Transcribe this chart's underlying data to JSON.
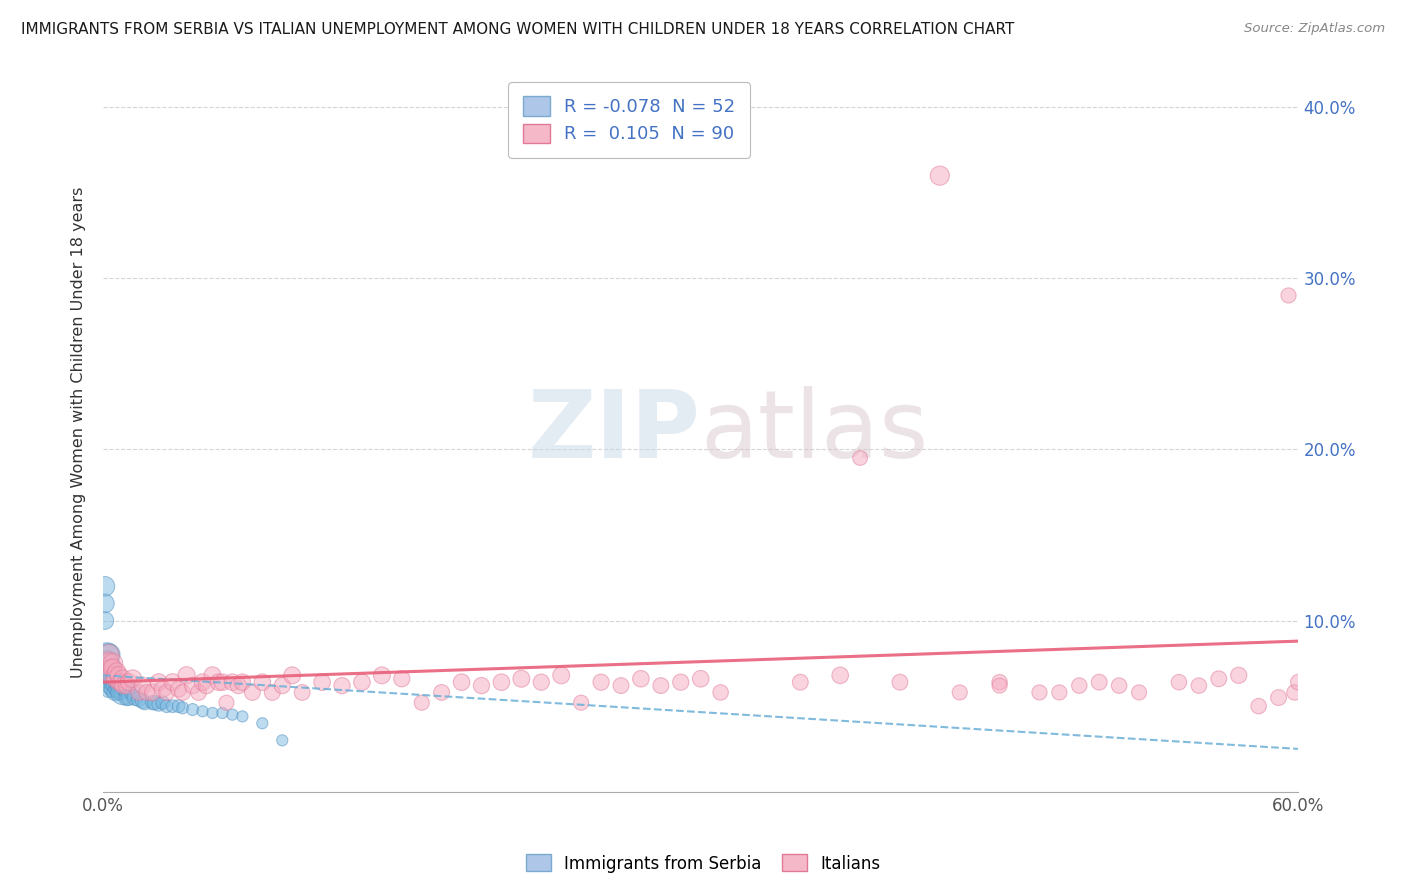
{
  "title": "IMMIGRANTS FROM SERBIA VS ITALIAN UNEMPLOYMENT AMONG WOMEN WITH CHILDREN UNDER 18 YEARS CORRELATION CHART",
  "source": "Source: ZipAtlas.com",
  "ylabel": "Unemployment Among Women with Children Under 18 years",
  "xlim": [
    0.0,
    0.6
  ],
  "ylim": [
    0.0,
    0.42
  ],
  "xtick_vals": [
    0.0,
    0.1,
    0.2,
    0.3,
    0.4,
    0.5,
    0.6
  ],
  "xtick_labels": [
    "0.0%",
    "",
    "",
    "",
    "",
    "",
    "60.0%"
  ],
  "ytick_vals": [
    0.0,
    0.1,
    0.2,
    0.3,
    0.4
  ],
  "ytick_labels": [
    "",
    "10.0%",
    "20.0%",
    "30.0%",
    "40.0%"
  ],
  "legend_entries": [
    {
      "color": "#aec6e8",
      "R": "-0.078",
      "N": "52",
      "label": "Immigrants from Serbia"
    },
    {
      "color": "#f5b8c8",
      "R": "0.105",
      "N": "90",
      "label": "Italians"
    }
  ],
  "watermark_zip": "ZIP",
  "watermark_atlas": "atlas",
  "background_color": "#ffffff",
  "grid_color": "#cccccc",
  "serbia_color": "#7ab8e0",
  "serbia_edge_color": "#5090c0",
  "italy_color": "#f5aabf",
  "italy_edge_color": "#e07898",
  "trend_serbia_color": "#6aaed6",
  "trend_italy_color": "#e8607a",
  "serbia_points_x": [
    0.001,
    0.001,
    0.001,
    0.002,
    0.002,
    0.002,
    0.003,
    0.003,
    0.003,
    0.003,
    0.003,
    0.004,
    0.004,
    0.004,
    0.005,
    0.005,
    0.005,
    0.006,
    0.006,
    0.006,
    0.007,
    0.007,
    0.008,
    0.008,
    0.009,
    0.009,
    0.01,
    0.01,
    0.012,
    0.012,
    0.013,
    0.015,
    0.016,
    0.018,
    0.02,
    0.021,
    0.025,
    0.026,
    0.028,
    0.03,
    0.032,
    0.035,
    0.038,
    0.04,
    0.045,
    0.05,
    0.055,
    0.06,
    0.065,
    0.07,
    0.08,
    0.09
  ],
  "serbia_points_y": [
    0.12,
    0.11,
    0.1,
    0.08,
    0.076,
    0.072,
    0.08,
    0.075,
    0.07,
    0.065,
    0.06,
    0.072,
    0.068,
    0.062,
    0.068,
    0.064,
    0.06,
    0.066,
    0.062,
    0.058,
    0.064,
    0.06,
    0.062,
    0.058,
    0.062,
    0.058,
    0.062,
    0.058,
    0.06,
    0.055,
    0.055,
    0.058,
    0.055,
    0.054,
    0.053,
    0.052,
    0.052,
    0.052,
    0.051,
    0.052,
    0.05,
    0.05,
    0.05,
    0.049,
    0.048,
    0.047,
    0.046,
    0.046,
    0.045,
    0.044,
    0.04,
    0.03
  ],
  "serbia_sizes": [
    200,
    180,
    160,
    300,
    260,
    220,
    260,
    220,
    190,
    170,
    150,
    210,
    190,
    170,
    190,
    170,
    150,
    170,
    155,
    135,
    155,
    135,
    145,
    125,
    135,
    120,
    210,
    310,
    155,
    135,
    125,
    135,
    125,
    115,
    115,
    105,
    105,
    105,
    95,
    95,
    85,
    85,
    85,
    75,
    75,
    65,
    65,
    65,
    65,
    65,
    65,
    65
  ],
  "italy_points_x": [
    0.002,
    0.003,
    0.003,
    0.004,
    0.004,
    0.005,
    0.005,
    0.006,
    0.006,
    0.007,
    0.008,
    0.008,
    0.009,
    0.01,
    0.01,
    0.012,
    0.013,
    0.015,
    0.018,
    0.02,
    0.022,
    0.025,
    0.028,
    0.03,
    0.032,
    0.035,
    0.038,
    0.04,
    0.042,
    0.045,
    0.048,
    0.05,
    0.052,
    0.055,
    0.058,
    0.06,
    0.062,
    0.065,
    0.068,
    0.07,
    0.075,
    0.08,
    0.085,
    0.09,
    0.095,
    0.1,
    0.11,
    0.12,
    0.13,
    0.14,
    0.15,
    0.16,
    0.17,
    0.18,
    0.19,
    0.2,
    0.21,
    0.22,
    0.23,
    0.24,
    0.25,
    0.26,
    0.27,
    0.28,
    0.29,
    0.3,
    0.31,
    0.35,
    0.37,
    0.4,
    0.42,
    0.43,
    0.45,
    0.47,
    0.49,
    0.5,
    0.51,
    0.52,
    0.54,
    0.56,
    0.57,
    0.58,
    0.59,
    0.595,
    0.598,
    0.6,
    0.55,
    0.45,
    0.48,
    0.38
  ],
  "italy_points_y": [
    0.075,
    0.08,
    0.076,
    0.072,
    0.068,
    0.075,
    0.072,
    0.068,
    0.066,
    0.07,
    0.064,
    0.068,
    0.064,
    0.066,
    0.062,
    0.062,
    0.064,
    0.066,
    0.058,
    0.062,
    0.058,
    0.058,
    0.064,
    0.06,
    0.058,
    0.064,
    0.06,
    0.058,
    0.068,
    0.062,
    0.058,
    0.064,
    0.062,
    0.068,
    0.064,
    0.064,
    0.052,
    0.064,
    0.062,
    0.064,
    0.058,
    0.064,
    0.058,
    0.062,
    0.068,
    0.058,
    0.064,
    0.062,
    0.064,
    0.068,
    0.066,
    0.052,
    0.058,
    0.064,
    0.062,
    0.064,
    0.066,
    0.064,
    0.068,
    0.052,
    0.064,
    0.062,
    0.066,
    0.062,
    0.064,
    0.066,
    0.058,
    0.064,
    0.068,
    0.064,
    0.36,
    0.058,
    0.064,
    0.058,
    0.062,
    0.064,
    0.062,
    0.058,
    0.064,
    0.066,
    0.068,
    0.05,
    0.055,
    0.29,
    0.058,
    0.064,
    0.062,
    0.062,
    0.058,
    0.195
  ],
  "italy_sizes": [
    200,
    220,
    190,
    180,
    160,
    200,
    180,
    160,
    150,
    170,
    145,
    160,
    145,
    160,
    135,
    145,
    150,
    165,
    130,
    145,
    130,
    140,
    150,
    145,
    130,
    150,
    138,
    130,
    155,
    138,
    130,
    145,
    138,
    150,
    142,
    142,
    118,
    142,
    136,
    142,
    130,
    142,
    130,
    136,
    148,
    130,
    142,
    136,
    142,
    148,
    136,
    118,
    130,
    142,
    136,
    142,
    148,
    136,
    148,
    118,
    136,
    130,
    142,
    130,
    136,
    142,
    124,
    130,
    142,
    130,
    190,
    118,
    124,
    118,
    124,
    130,
    124,
    118,
    124,
    130,
    136,
    124,
    130,
    118,
    124,
    130,
    124,
    118,
    118,
    112
  ]
}
